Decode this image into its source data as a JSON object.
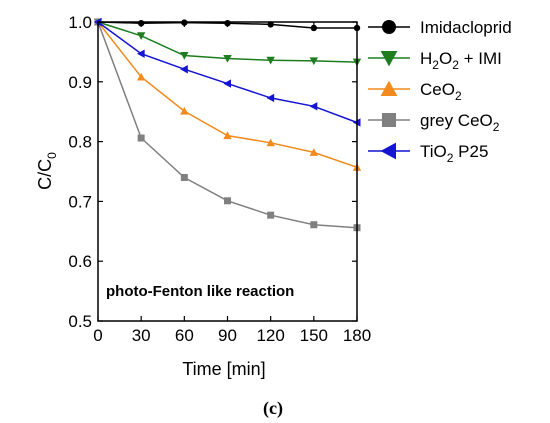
{
  "chart_data": {
    "type": "line",
    "xlabel": "Time [min]",
    "ylabel_main": "C/C",
    "ylabel_sub": "0",
    "xlim": [
      0,
      180
    ],
    "ylim": [
      0.5,
      1.0
    ],
    "xticks": [
      0,
      30,
      60,
      90,
      120,
      150,
      180
    ],
    "yticks": [
      "0.5",
      "0.6",
      "0.7",
      "0.8",
      "0.9",
      "1.0"
    ],
    "x": [
      0,
      30,
      60,
      90,
      120,
      150,
      180
    ],
    "annotation": "photo-Fenton like reaction",
    "caption": "(c)",
    "legend_placement": "right",
    "series": [
      {
        "name": "Imidacloprid",
        "legend": [
          {
            "t": "Imidacloprid"
          }
        ],
        "color": "#000000",
        "marker": "circle",
        "values": [
          1.0,
          0.998,
          0.999,
          0.998,
          0.996,
          0.99,
          0.99
        ]
      },
      {
        "name": "H2O2 + IMI",
        "legend": [
          {
            "t": "H"
          },
          {
            "t": "2",
            "sub": true
          },
          {
            "t": "O"
          },
          {
            "t": "2",
            "sub": true
          },
          {
            "t": " + IMI"
          }
        ],
        "color": "#1e7d1e",
        "marker": "triangle-down",
        "values": [
          1.0,
          0.977,
          0.944,
          0.939,
          0.936,
          0.935,
          0.933
        ]
      },
      {
        "name": "CeO2",
        "legend": [
          {
            "t": "CeO"
          },
          {
            "t": "2",
            "sub": true
          }
        ],
        "color": "#f28a1e",
        "marker": "triangle-up",
        "values": [
          1.0,
          0.908,
          0.851,
          0.81,
          0.798,
          0.782,
          0.757
        ]
      },
      {
        "name": "grey CeO2",
        "legend": [
          {
            "t": "grey CeO"
          },
          {
            "t": "2",
            "sub": true
          }
        ],
        "color": "#808080",
        "marker": "square",
        "values": [
          1.0,
          0.806,
          0.74,
          0.701,
          0.677,
          0.661,
          0.656
        ]
      },
      {
        "name": "TiO2 P25",
        "legend": [
          {
            "t": "TiO"
          },
          {
            "t": "2",
            "sub": true
          },
          {
            "t": " P25"
          }
        ],
        "color": "#1414d2",
        "marker": "triangle-left",
        "values": [
          1.0,
          0.947,
          0.921,
          0.897,
          0.873,
          0.859,
          0.832
        ]
      }
    ]
  }
}
